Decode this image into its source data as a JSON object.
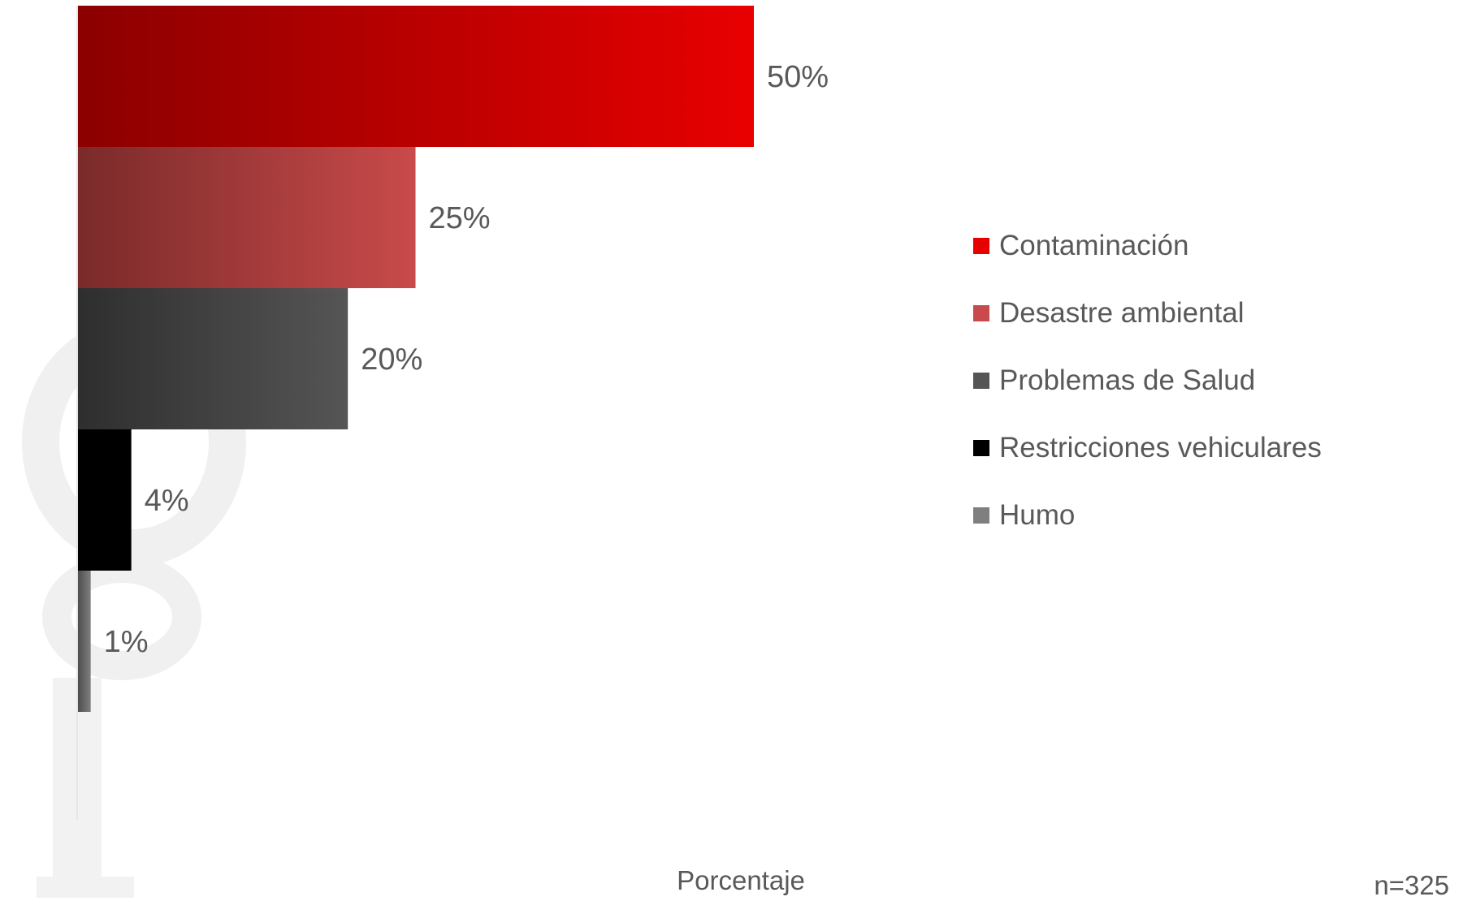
{
  "chart_data": {
    "type": "bar",
    "orientation": "horizontal",
    "categories": [
      "Contaminación",
      "Desastre ambiental",
      "Problemas de Salud",
      "Restricciones vehiculares",
      "Humo"
    ],
    "values": [
      50,
      25,
      20,
      4,
      1
    ],
    "value_labels": [
      "50%",
      "25%",
      "20%",
      "4%",
      "1%"
    ],
    "xlabel": "Porcentaje",
    "xlim": [
      0,
      50
    ],
    "grid": false,
    "legend_placement": "right",
    "colors": [
      "#e80000",
      "#c94a4a",
      "#555555",
      "#000000",
      "#7f7f7f"
    ],
    "colors_dark": [
      "#8b0000",
      "#7a2a2a",
      "#2e2e2e",
      "#000000",
      "#4a4a4a"
    ],
    "note": "n=325"
  }
}
